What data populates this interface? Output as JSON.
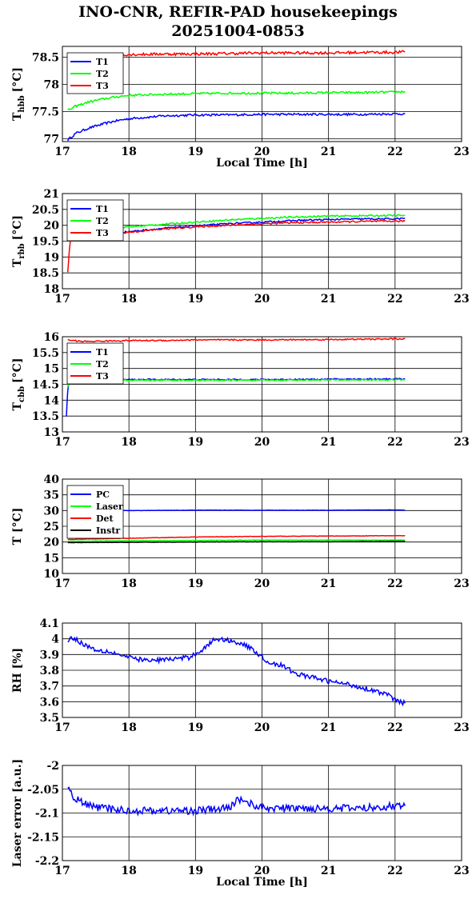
{
  "title": {
    "line1": "INO-CNR, REFIR-PAD housekeepings",
    "line2": "20251004-0853"
  },
  "colors": {
    "blue": "#0000ff",
    "green": "#00ff00",
    "red": "#ff0000",
    "black": "#000000"
  },
  "chart_data": [
    {
      "type": "line",
      "ylabel": "T",
      "ylabel_sub": "hbb",
      "ylabel_unit": "[°C]",
      "xlabel": "Local Time [h]",
      "xlim": [
        17,
        23
      ],
      "ylim": [
        76.95,
        78.7
      ],
      "xticks": [
        "17",
        "18",
        "19",
        "20",
        "21",
        "22",
        "23"
      ],
      "yticks": [
        {
          "v": 77,
          "label": "77"
        },
        {
          "v": 77.5,
          "label": "77.5"
        },
        {
          "v": 78,
          "label": "78"
        },
        {
          "v": 78.5,
          "label": "78.5"
        }
      ],
      "grid": true,
      "legend_position": "top-left",
      "series": [
        {
          "name": "T1",
          "color": "#0000ff",
          "points": [
            [
              17.08,
              76.98
            ],
            [
              17.2,
              77.1
            ],
            [
              17.4,
              77.2
            ],
            [
              17.6,
              77.27
            ],
            [
              17.8,
              77.33
            ],
            [
              18.0,
              77.37
            ],
            [
              18.5,
              77.42
            ],
            [
              19.0,
              77.44
            ],
            [
              19.5,
              77.44
            ],
            [
              20.0,
              77.45
            ],
            [
              20.5,
              77.45
            ],
            [
              21.0,
              77.45
            ],
            [
              21.5,
              77.45
            ],
            [
              22.0,
              77.46
            ],
            [
              22.15,
              77.46
            ]
          ],
          "noise": 0.02
        },
        {
          "name": "T2",
          "color": "#00ff00",
          "points": [
            [
              17.08,
              77.52
            ],
            [
              17.2,
              77.6
            ],
            [
              17.4,
              77.68
            ],
            [
              17.6,
              77.73
            ],
            [
              17.8,
              77.77
            ],
            [
              18.0,
              77.8
            ],
            [
              18.5,
              77.82
            ],
            [
              19.0,
              77.83
            ],
            [
              19.5,
              77.84
            ],
            [
              20.0,
              77.84
            ],
            [
              20.5,
              77.84
            ],
            [
              21.0,
              77.85
            ],
            [
              21.5,
              77.85
            ],
            [
              22.0,
              77.86
            ],
            [
              22.15,
              77.87
            ]
          ],
          "noise": 0.02
        },
        {
          "name": "T3",
          "color": "#ff0000",
          "points": [
            [
              17.08,
              78.45
            ],
            [
              17.2,
              78.5
            ],
            [
              17.5,
              78.53
            ],
            [
              18.0,
              78.55
            ],
            [
              18.5,
              78.56
            ],
            [
              19.0,
              78.56
            ],
            [
              19.5,
              78.57
            ],
            [
              20.0,
              78.58
            ],
            [
              20.5,
              78.58
            ],
            [
              21.0,
              78.58
            ],
            [
              21.5,
              78.59
            ],
            [
              22.0,
              78.59
            ],
            [
              22.15,
              78.6
            ]
          ],
          "noise": 0.025
        }
      ]
    },
    {
      "type": "line",
      "ylabel": "T",
      "ylabel_sub": "rbb",
      "ylabel_unit": "[°C]",
      "xlabel": "",
      "xlim": [
        17,
        23
      ],
      "ylim": [
        18,
        21
      ],
      "xticks": [
        "17",
        "18",
        "19",
        "20",
        "21",
        "22",
        "23"
      ],
      "yticks": [
        {
          "v": 18,
          "label": "18"
        },
        {
          "v": 18.5,
          "label": "18.5"
        },
        {
          "v": 19,
          "label": "19"
        },
        {
          "v": 19.5,
          "label": "19.5"
        },
        {
          "v": 20,
          "label": "20"
        },
        {
          "v": 20.5,
          "label": "20.5"
        },
        {
          "v": 21,
          "label": "21"
        }
      ],
      "grid": true,
      "legend_position": "top-left",
      "series": [
        {
          "name": "T1",
          "color": "#0000ff",
          "points": [
            [
              17.08,
              19.6
            ],
            [
              17.5,
              19.7
            ],
            [
              18.0,
              19.8
            ],
            [
              18.5,
              19.9
            ],
            [
              19.0,
              19.98
            ],
            [
              19.5,
              20.05
            ],
            [
              20.0,
              20.1
            ],
            [
              20.5,
              20.15
            ],
            [
              21.0,
              20.18
            ],
            [
              21.5,
              20.2
            ],
            [
              22.0,
              20.2
            ],
            [
              22.15,
              20.22
            ]
          ],
          "noise": 0.025
        },
        {
          "name": "T2",
          "color": "#00ff00",
          "points": [
            [
              17.08,
              19.75
            ],
            [
              17.5,
              19.85
            ],
            [
              18.0,
              19.95
            ],
            [
              18.5,
              20.03
            ],
            [
              19.0,
              20.1
            ],
            [
              19.5,
              20.17
            ],
            [
              20.0,
              20.22
            ],
            [
              20.5,
              20.26
            ],
            [
              21.0,
              20.29
            ],
            [
              21.5,
              20.3
            ],
            [
              22.0,
              20.31
            ],
            [
              22.15,
              20.31
            ]
          ],
          "noise": 0.025
        },
        {
          "name": "T3",
          "color": "#ff0000",
          "points": [
            [
              17.08,
              18.5
            ],
            [
              17.1,
              19.1
            ],
            [
              17.12,
              19.5
            ],
            [
              17.2,
              19.58
            ],
            [
              17.5,
              19.68
            ],
            [
              18.0,
              19.78
            ],
            [
              18.5,
              19.88
            ],
            [
              19.0,
              19.95
            ],
            [
              19.5,
              20.0
            ],
            [
              20.0,
              20.05
            ],
            [
              20.5,
              20.08
            ],
            [
              21.0,
              20.1
            ],
            [
              21.5,
              20.12
            ],
            [
              22.0,
              20.13
            ],
            [
              22.15,
              20.13
            ]
          ],
          "noise": 0.025
        }
      ]
    },
    {
      "type": "line",
      "ylabel": "T",
      "ylabel_sub": "cbb",
      "ylabel_unit": "[°C]",
      "xlabel": "",
      "xlim": [
        17,
        23
      ],
      "ylim": [
        13,
        16
      ],
      "xticks": [
        "17",
        "18",
        "19",
        "20",
        "21",
        "22",
        "23"
      ],
      "yticks": [
        {
          "v": 13,
          "label": "13"
        },
        {
          "v": 13.5,
          "label": "13.5"
        },
        {
          "v": 14,
          "label": "14"
        },
        {
          "v": 14.5,
          "label": "14.5"
        },
        {
          "v": 15,
          "label": "15"
        },
        {
          "v": 15.5,
          "label": "15.5"
        },
        {
          "v": 16,
          "label": "16"
        }
      ],
      "grid": true,
      "legend_position": "top-left",
      "series": [
        {
          "name": "T1",
          "color": "#0000ff",
          "points": [
            [
              17.06,
              13.5
            ],
            [
              17.08,
              14.3
            ],
            [
              17.1,
              14.6
            ],
            [
              17.3,
              14.65
            ],
            [
              18.0,
              14.65
            ],
            [
              19.0,
              14.65
            ],
            [
              20.0,
              14.65
            ],
            [
              21.0,
              14.66
            ],
            [
              22.0,
              14.67
            ],
            [
              22.15,
              14.67
            ]
          ],
          "noise": 0.02
        },
        {
          "name": "T2",
          "color": "#00ff00",
          "points": [
            [
              17.08,
              14.4
            ],
            [
              17.1,
              14.6
            ],
            [
              17.3,
              14.63
            ],
            [
              18.0,
              14.63
            ],
            [
              19.0,
              14.63
            ],
            [
              20.0,
              14.63
            ],
            [
              21.0,
              14.64
            ],
            [
              22.0,
              14.64
            ],
            [
              22.15,
              14.65
            ]
          ],
          "noise": 0.02
        },
        {
          "name": "T3",
          "color": "#ff0000",
          "points": [
            [
              17.08,
              15.9
            ],
            [
              17.3,
              15.85
            ],
            [
              18.0,
              15.88
            ],
            [
              18.5,
              15.88
            ],
            [
              19.0,
              15.9
            ],
            [
              20.0,
              15.9
            ],
            [
              21.0,
              15.91
            ],
            [
              22.0,
              15.93
            ],
            [
              22.15,
              15.93
            ]
          ],
          "noise": 0.02
        }
      ]
    },
    {
      "type": "line",
      "ylabel": "T [°C]",
      "ylabel_sub": "",
      "ylabel_unit": "",
      "xlabel": "",
      "xlim": [
        17,
        23
      ],
      "ylim": [
        10,
        40
      ],
      "xticks": [
        "17",
        "18",
        "19",
        "20",
        "21",
        "22",
        "23"
      ],
      "yticks": [
        {
          "v": 10,
          "label": "10"
        },
        {
          "v": 15,
          "label": "15"
        },
        {
          "v": 20,
          "label": "20"
        },
        {
          "v": 25,
          "label": "25"
        },
        {
          "v": 30,
          "label": "30"
        },
        {
          "v": 35,
          "label": "35"
        },
        {
          "v": 40,
          "label": "40"
        }
      ],
      "grid": true,
      "legend_position": "top-left",
      "series": [
        {
          "name": "PC",
          "color": "#0000ff",
          "points": [
            [
              17.6,
              30.0
            ],
            [
              18.0,
              30.0
            ],
            [
              19.0,
              30.1
            ],
            [
              20.0,
              30.1
            ],
            [
              21.0,
              30.1
            ],
            [
              22.0,
              30.2
            ],
            [
              22.15,
              30.1
            ]
          ],
          "noise": 0.05
        },
        {
          "name": "Laser",
          "color": "#00ff00",
          "points": [
            [
              17.08,
              20.2
            ],
            [
              18.0,
              20.4
            ],
            [
              19.0,
              20.5
            ],
            [
              20.0,
              20.6
            ],
            [
              21.0,
              20.6
            ],
            [
              22.0,
              20.6
            ],
            [
              22.15,
              20.6
            ]
          ],
          "noise": 0.05
        },
        {
          "name": "Det",
          "color": "#ff0000",
          "points": [
            [
              17.08,
              20.8
            ],
            [
              17.5,
              21.0
            ],
            [
              18.0,
              21.2
            ],
            [
              19.0,
              21.6
            ],
            [
              20.0,
              21.8
            ],
            [
              21.0,
              21.9
            ],
            [
              22.0,
              22.0
            ],
            [
              22.15,
              22.0
            ]
          ],
          "noise": 0.06
        },
        {
          "name": "Instr",
          "color": "#000000",
          "points": [
            [
              17.08,
              19.8
            ],
            [
              18.0,
              19.9
            ],
            [
              19.0,
              20.0
            ],
            [
              20.0,
              20.1
            ],
            [
              21.0,
              20.1
            ],
            [
              22.0,
              20.2
            ],
            [
              22.15,
              20.2
            ]
          ],
          "noise": 0.05
        }
      ]
    },
    {
      "type": "line",
      "ylabel": "RH [%]",
      "ylabel_sub": "",
      "ylabel_unit": "",
      "xlabel": "",
      "xlim": [
        17,
        23
      ],
      "ylim": [
        3.5,
        4.1
      ],
      "xticks": [
        "17",
        "18",
        "19",
        "20",
        "21",
        "22",
        "23"
      ],
      "yticks": [
        {
          "v": 3.5,
          "label": "3.5"
        },
        {
          "v": 3.6,
          "label": "3.6"
        },
        {
          "v": 3.7,
          "label": "3.7"
        },
        {
          "v": 3.8,
          "label": "3.8"
        },
        {
          "v": 3.9,
          "label": "3.9"
        },
        {
          "v": 4,
          "label": "4"
        },
        {
          "v": 4.1,
          "label": "4.1"
        }
      ],
      "grid": true,
      "legend_position": "",
      "series": [
        {
          "color": "#0000ff",
          "points": [
            [
              17.08,
              3.99
            ],
            [
              17.15,
              4.01
            ],
            [
              17.3,
              3.97
            ],
            [
              17.5,
              3.93
            ],
            [
              17.7,
              3.92
            ],
            [
              18.0,
              3.88
            ],
            [
              18.3,
              3.86
            ],
            [
              18.6,
              3.87
            ],
            [
              18.9,
              3.88
            ],
            [
              19.1,
              3.93
            ],
            [
              19.3,
              4.0
            ],
            [
              19.5,
              3.99
            ],
            [
              19.7,
              3.97
            ],
            [
              19.9,
              3.92
            ],
            [
              20.1,
              3.85
            ],
            [
              20.3,
              3.83
            ],
            [
              20.5,
              3.78
            ],
            [
              20.8,
              3.75
            ],
            [
              21.0,
              3.73
            ],
            [
              21.3,
              3.71
            ],
            [
              21.5,
              3.69
            ],
            [
              21.7,
              3.67
            ],
            [
              21.9,
              3.64
            ],
            [
              22.05,
              3.6
            ],
            [
              22.15,
              3.59
            ]
          ],
          "noise": 0.015
        }
      ]
    },
    {
      "type": "line",
      "ylabel": "Laser error [a.u.]",
      "ylabel_sub": "",
      "ylabel_unit": "",
      "xlabel": "Local Time [h]",
      "xlim": [
        17,
        23
      ],
      "ylim": [
        -2.2,
        -2
      ],
      "xticks": [
        "17",
        "18",
        "19",
        "20",
        "21",
        "22",
        "23"
      ],
      "yticks": [
        {
          "v": -2.2,
          "label": "-2.2"
        },
        {
          "v": -2.15,
          "label": "-2.15"
        },
        {
          "v": -2.1,
          "label": "-2.1"
        },
        {
          "v": -2.05,
          "label": "-2.05"
        },
        {
          "v": -2,
          "label": "-2"
        }
      ],
      "grid": true,
      "legend_position": "",
      "series": [
        {
          "color": "#0000ff",
          "points": [
            [
              17.08,
              -2.05
            ],
            [
              17.2,
              -2.07
            ],
            [
              17.4,
              -2.085
            ],
            [
              17.6,
              -2.09
            ],
            [
              18.0,
              -2.095
            ],
            [
              18.5,
              -2.095
            ],
            [
              19.0,
              -2.095
            ],
            [
              19.5,
              -2.09
            ],
            [
              19.65,
              -2.07
            ],
            [
              20.0,
              -2.09
            ],
            [
              20.5,
              -2.09
            ],
            [
              21.0,
              -2.09
            ],
            [
              21.5,
              -2.09
            ],
            [
              22.0,
              -2.085
            ],
            [
              22.15,
              -2.085
            ]
          ],
          "noise": 0.008
        }
      ]
    }
  ]
}
